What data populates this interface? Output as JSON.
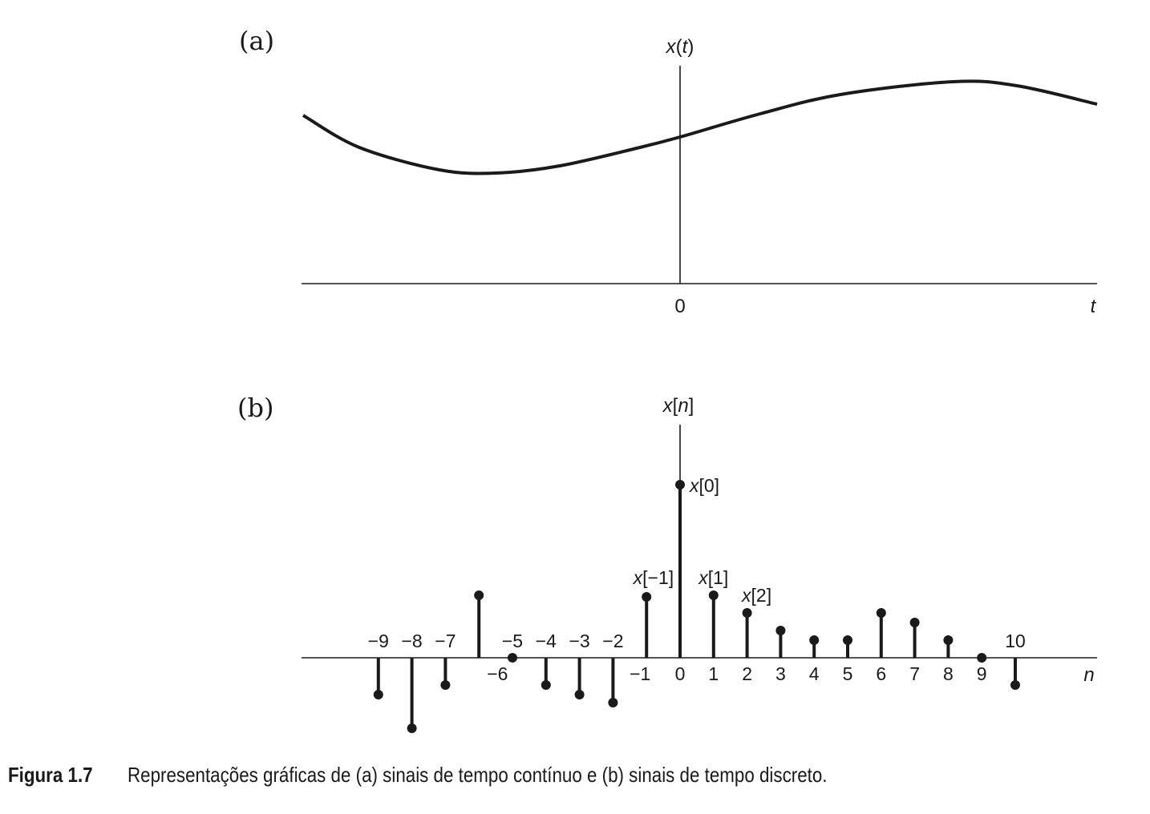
{
  "figure": {
    "caption_number": "Figura 1.7",
    "caption_text": "Representações gráficas de (a) sinais de tempo contínuo e (b) sinais de tempo discreto."
  },
  "panel_a": {
    "label": "(a)",
    "y_label_var": "x",
    "y_label_arg": "t",
    "origin_label": "0",
    "x_label": "t"
  },
  "panel_b": {
    "label": "(b)",
    "y_label_var": "x",
    "y_label_arg": "n",
    "x_label": "n",
    "annotations": [
      {
        "n": 0,
        "text": "x[0]"
      },
      {
        "n": -1,
        "text": "x[−1]"
      },
      {
        "n": 1,
        "text": "x[1]"
      },
      {
        "n": 2,
        "text": "x[2]"
      }
    ]
  },
  "chart_data": [
    {
      "type": "line",
      "description_axis": "continuous-time signal",
      "x_range": [
        -4.7,
        5.2
      ],
      "t": [
        -4.7,
        -4.0,
        -3.0,
        -2.3,
        -1.5,
        -0.5,
        0,
        1.0,
        2.0,
        3.4,
        4.2,
        5.2
      ],
      "x": [
        2.1,
        1.7,
        1.42,
        1.38,
        1.47,
        1.7,
        1.83,
        2.12,
        2.36,
        2.52,
        2.47,
        2.24
      ],
      "ylim": [
        0,
        2.8
      ],
      "grid": false
    },
    {
      "type": "stem",
      "n": [
        -9,
        -8,
        -7,
        -6,
        -5,
        -4,
        -3,
        -2,
        -1,
        0,
        1,
        2,
        3,
        4,
        5,
        6,
        7,
        8,
        9,
        10
      ],
      "tick_labels": [
        "−9",
        "−8",
        "−7",
        "−6",
        "−5",
        "−4",
        "−3",
        "−2",
        "−1",
        "0",
        "1",
        "2",
        "3",
        "4",
        "5",
        "6",
        "7",
        "8",
        "9",
        "10"
      ],
      "x": [
        -0.46,
        -0.88,
        -0.34,
        0.78,
        0.0,
        -0.34,
        -0.46,
        -0.56,
        0.76,
        2.16,
        0.78,
        0.56,
        0.34,
        0.22,
        0.22,
        0.56,
        0.44,
        0.22,
        0.0,
        -0.34
      ],
      "grid": false
    }
  ]
}
